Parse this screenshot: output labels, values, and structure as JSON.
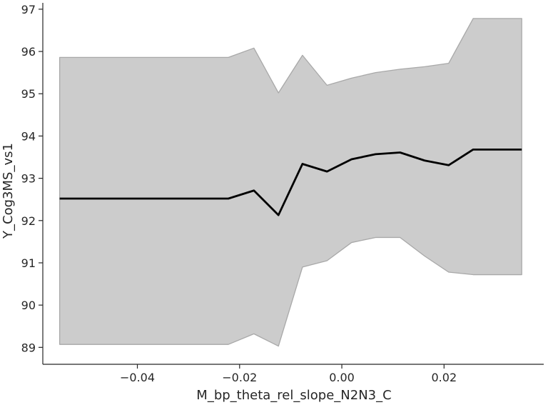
{
  "chart_data": {
    "type": "line",
    "title": "",
    "xlabel": "M_bp_theta_rel_slope_N2N3_C",
    "ylabel": "Y_Cog3MS_vs1",
    "xlim": [
      -0.0585,
      0.0395
    ],
    "ylim": [
      88.6,
      97.15
    ],
    "grid": false,
    "legend": "none",
    "x_ticks": [
      -0.04,
      -0.02,
      0.0,
      0.02
    ],
    "x_tick_labels": [
      "−0.04",
      "−0.02",
      "0.00",
      "0.02"
    ],
    "y_ticks": [
      89,
      90,
      91,
      92,
      93,
      94,
      95,
      96,
      97
    ],
    "y_tick_labels": [
      "89",
      "90",
      "91",
      "92",
      "93",
      "94",
      "95",
      "96",
      "97"
    ],
    "series": [
      {
        "x": [
          -0.0552,
          -0.0222,
          -0.0172,
          -0.0124,
          -0.0077,
          -0.0029,
          0.0019,
          0.0066,
          0.0114,
          0.0162,
          0.0209,
          0.0257,
          0.0352
        ],
        "y": [
          92.52,
          92.52,
          92.71,
          92.13,
          93.34,
          93.16,
          93.45,
          93.57,
          93.61,
          93.42,
          93.31,
          93.68,
          93.68
        ],
        "lower": [
          89.07,
          89.07,
          89.32,
          89.03,
          90.9,
          91.05,
          91.48,
          91.6,
          91.6,
          91.16,
          90.78,
          90.72,
          90.72
        ],
        "upper": [
          95.86,
          95.86,
          96.08,
          95.02,
          95.91,
          95.2,
          95.37,
          95.5,
          95.58,
          95.64,
          95.72,
          96.78,
          96.78
        ]
      }
    ],
    "colors": {
      "line": "#000000",
      "band_fill": "#cccccc",
      "band_edge": "#a8a8a8",
      "axis": "#262626"
    }
  }
}
